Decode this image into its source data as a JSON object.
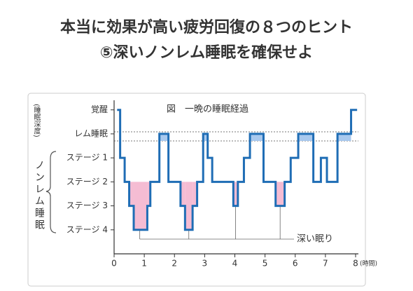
{
  "chart_data": {
    "type": "line",
    "title": "本当に効果が高い疲労回復の８つのヒント",
    "subtitle": "⑤深いノンレム睡眠を確保せよ",
    "inner_title": "図　一晩の睡眠経過",
    "ylabel": "(睡眠深度)",
    "bracket_label": "ノンレム睡眠",
    "annotation": "深い眠り",
    "xlabel": "(時間)",
    "step": true,
    "xlim": [
      0,
      8
    ],
    "xticks": [
      0,
      1,
      2,
      3,
      4,
      5,
      6,
      7,
      8
    ],
    "ylim": [
      6,
      -0.4
    ],
    "yticks": [
      {
        "value": 0,
        "label": "覚醒"
      },
      {
        "value": 1,
        "label": "レム睡眠"
      },
      {
        "value": 2,
        "label": "ステージ 1"
      },
      {
        "value": 3,
        "label": "ステージ 2"
      },
      {
        "value": 4,
        "label": "ステージ 3"
      },
      {
        "value": 5,
        "label": "ステージ 4"
      }
    ],
    "series": [
      {
        "color": "#1f6db5",
        "x": [
          0.1,
          0.2,
          0.35,
          0.5,
          0.65,
          1.1,
          1.2,
          1.5,
          1.8,
          2.2,
          2.35,
          2.6,
          2.75,
          2.95,
          3.1,
          3.25,
          3.95,
          4.1,
          4.3,
          4.5,
          4.95,
          5.35,
          5.65,
          5.85,
          6.1,
          6.6,
          6.85,
          7.05,
          7.4,
          7.85,
          8.05
        ],
        "values": [
          0,
          2,
          3,
          4,
          5,
          4,
          3,
          1,
          3,
          4,
          5,
          4,
          3,
          1,
          2,
          3,
          4,
          3,
          2,
          1,
          3,
          4,
          3,
          2,
          1,
          3,
          2,
          3,
          1,
          0,
          0
        ]
      }
    ]
  }
}
